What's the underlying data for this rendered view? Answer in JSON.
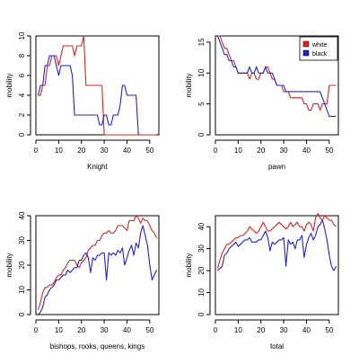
{
  "colors": {
    "white": "#dd2222",
    "black": "#2222cc",
    "axis": "#000000"
  },
  "chart_data": [
    {
      "type": "line",
      "xlabel": "Knight",
      "ylabel": "mobility",
      "xlim": [
        0,
        54
      ],
      "ylim": [
        0,
        10
      ],
      "xticks": [
        0,
        10,
        20,
        30,
        40,
        50
      ],
      "yticks": [
        0,
        2,
        4,
        6,
        8,
        10
      ],
      "series": [
        {
          "key": "white",
          "color": "#dd2222",
          "x": [
            1,
            2,
            3,
            4,
            5,
            6,
            7,
            8,
            9,
            10,
            11,
            12,
            13,
            14,
            15,
            16,
            17,
            18,
            19,
            20,
            21,
            22,
            23,
            24,
            25,
            26,
            27,
            28,
            29,
            30,
            31,
            32,
            33,
            34,
            35,
            36,
            37,
            38,
            39,
            40,
            41,
            42,
            43,
            44,
            45,
            46,
            47,
            48,
            49,
            50,
            51,
            52,
            53
          ],
          "y": [
            4,
            4,
            5,
            5,
            7,
            7,
            8,
            8,
            8,
            7,
            8,
            9,
            9,
            9,
            9,
            9,
            8,
            9,
            9,
            9,
            10,
            5,
            5,
            5,
            5,
            5,
            5,
            5,
            5,
            0,
            0,
            0,
            0,
            0,
            0,
            0,
            0,
            0,
            0,
            0,
            0,
            0,
            0,
            0,
            0,
            0,
            0,
            0,
            0,
            0,
            0,
            0,
            0
          ]
        },
        {
          "key": "black",
          "color": "#2222cc",
          "x": [
            1,
            2,
            3,
            4,
            5,
            6,
            7,
            8,
            9,
            10,
            11,
            12,
            13,
            14,
            15,
            16,
            17,
            18,
            19,
            20,
            21,
            22,
            23,
            24,
            25,
            26,
            27,
            28,
            29,
            30,
            31,
            32,
            33,
            34,
            35,
            36,
            37,
            38,
            39,
            40,
            41,
            42,
            43,
            44,
            45
          ],
          "y": [
            4,
            5,
            5,
            7,
            7,
            8,
            8,
            8,
            7,
            6,
            7,
            7,
            7,
            7,
            7,
            6,
            2,
            2,
            2,
            2,
            2,
            2,
            2,
            2,
            2,
            2,
            2,
            1,
            1,
            2,
            2,
            1,
            1,
            2,
            2,
            2,
            3,
            5,
            5,
            4,
            4,
            4,
            4,
            4,
            0
          ]
        }
      ]
    },
    {
      "type": "line",
      "xlabel": "pawn",
      "ylabel": "mobility",
      "xlim": [
        0,
        54
      ],
      "ylim": [
        0,
        16
      ],
      "xticks": [
        0,
        10,
        20,
        30,
        40,
        50
      ],
      "yticks": [
        0,
        5,
        10,
        15
      ],
      "legend": {
        "position": "top-right",
        "entries": [
          "white",
          "black"
        ]
      },
      "series": [
        {
          "key": "white",
          "color": "#dd2222",
          "x": [
            1,
            2,
            3,
            4,
            5,
            6,
            7,
            8,
            9,
            10,
            11,
            12,
            13,
            14,
            15,
            16,
            17,
            18,
            19,
            20,
            21,
            22,
            23,
            24,
            25,
            26,
            27,
            28,
            29,
            30,
            31,
            32,
            33,
            34,
            35,
            36,
            37,
            38,
            39,
            40,
            41,
            42,
            43,
            44,
            45,
            46,
            47,
            48,
            49,
            50,
            51,
            52,
            53
          ],
          "y": [
            16,
            16,
            15,
            14,
            14,
            13,
            12,
            12,
            11,
            10,
            10,
            10,
            10,
            10,
            9,
            10,
            10,
            9,
            9,
            10,
            10,
            11,
            11,
            10,
            9,
            9,
            8,
            8,
            8,
            7,
            7,
            7,
            6,
            6,
            6,
            6,
            6,
            6,
            5,
            5,
            4,
            4,
            5,
            5,
            5,
            4,
            5,
            5,
            5,
            8,
            8,
            8,
            8
          ]
        },
        {
          "key": "black",
          "color": "#2222cc",
          "x": [
            1,
            2,
            3,
            4,
            5,
            6,
            7,
            8,
            9,
            10,
            11,
            12,
            13,
            14,
            15,
            16,
            17,
            18,
            19,
            20,
            21,
            22,
            23,
            24,
            25,
            26,
            27,
            28,
            29,
            30,
            31,
            32,
            33,
            34,
            35,
            36,
            37,
            38,
            39,
            40,
            41,
            42,
            43,
            44,
            45,
            46,
            47,
            48,
            49,
            50,
            51,
            52,
            53
          ],
          "y": [
            16,
            15,
            14,
            13,
            13,
            12,
            12,
            11,
            11,
            10,
            10,
            10,
            10,
            10,
            11,
            10,
            10,
            11,
            10,
            10,
            10,
            11,
            10,
            10,
            10,
            9,
            8,
            8,
            8,
            8,
            7,
            7,
            7,
            7,
            7,
            7,
            7,
            7,
            7,
            7,
            7,
            7,
            7,
            7,
            7,
            7,
            6,
            5,
            4,
            3,
            3,
            3,
            3
          ]
        }
      ]
    },
    {
      "type": "line",
      "xlabel": "bishops, rooks, queens, kings",
      "ylabel": "mobility",
      "xlim": [
        0,
        54
      ],
      "ylim": [
        0,
        40
      ],
      "xticks": [
        0,
        10,
        20,
        30,
        40,
        50
      ],
      "yticks": [
        0,
        10,
        20,
        30,
        40
      ],
      "series": [
        {
          "key": "white",
          "color": "#dd2222",
          "x": [
            1,
            2,
            3,
            4,
            5,
            6,
            7,
            8,
            9,
            10,
            11,
            12,
            13,
            14,
            15,
            16,
            17,
            18,
            19,
            20,
            21,
            22,
            23,
            24,
            25,
            26,
            27,
            28,
            29,
            30,
            31,
            32,
            33,
            34,
            35,
            36,
            37,
            38,
            39,
            40,
            41,
            42,
            43,
            44,
            45,
            46,
            47,
            48,
            49,
            50,
            51,
            52,
            53
          ],
          "y": [
            2,
            5,
            9,
            11,
            11,
            12,
            12,
            13,
            15,
            16,
            16,
            18,
            19,
            21,
            22,
            22,
            22,
            20,
            19,
            21,
            22,
            23,
            26,
            27,
            28,
            28,
            30,
            30,
            32,
            33,
            33,
            34,
            33,
            33,
            34,
            36,
            36,
            36,
            35,
            34,
            38,
            38,
            38,
            40,
            39,
            37,
            39,
            38,
            38,
            36,
            34,
            33,
            31
          ]
        },
        {
          "key": "black",
          "color": "#2222cc",
          "x": [
            1,
            2,
            3,
            4,
            5,
            6,
            7,
            8,
            9,
            10,
            11,
            12,
            13,
            14,
            15,
            16,
            17,
            18,
            19,
            20,
            21,
            22,
            23,
            24,
            25,
            26,
            27,
            28,
            29,
            30,
            31,
            32,
            33,
            34,
            35,
            36,
            37,
            38,
            39,
            40,
            41,
            42,
            43,
            44,
            45,
            46,
            47,
            48,
            49,
            50,
            51,
            52,
            53
          ],
          "y": [
            0,
            1,
            3,
            7,
            8,
            10,
            11,
            12,
            14,
            14,
            15,
            16,
            16,
            18,
            17,
            18,
            19,
            19,
            22,
            22,
            24,
            25,
            23,
            17,
            23,
            22,
            24,
            24,
            25,
            25,
            14,
            25,
            24,
            25,
            24,
            26,
            25,
            27,
            20,
            23,
            26,
            28,
            24,
            29,
            27,
            33,
            36,
            32,
            28,
            20,
            14,
            16,
            18
          ]
        }
      ]
    },
    {
      "type": "line",
      "xlabel": "total",
      "ylabel": "mobility",
      "xlim": [
        0,
        54
      ],
      "ylim": [
        0,
        45
      ],
      "xticks": [
        0,
        10,
        20,
        30,
        40,
        50
      ],
      "yticks": [
        0,
        10,
        20,
        30,
        40
      ],
      "series": [
        {
          "key": "white",
          "color": "#dd2222",
          "x": [
            1,
            2,
            3,
            4,
            5,
            6,
            7,
            8,
            9,
            10,
            11,
            12,
            13,
            14,
            15,
            16,
            17,
            18,
            19,
            20,
            21,
            22,
            23,
            24,
            25,
            26,
            27,
            28,
            29,
            30,
            31,
            32,
            33,
            34,
            35,
            36,
            37,
            38,
            39,
            40,
            41,
            42,
            43,
            44,
            45,
            46,
            47,
            48,
            49,
            50,
            51,
            52,
            53
          ],
          "y": [
            21,
            25,
            28,
            30,
            32,
            32,
            33,
            34,
            35,
            35,
            36,
            36,
            37,
            38,
            40,
            39,
            38,
            37,
            38,
            40,
            42,
            40,
            38,
            38,
            39,
            40,
            41,
            42,
            41,
            40,
            39,
            40,
            42,
            40,
            41,
            42,
            40,
            40,
            38,
            41,
            42,
            41,
            38,
            44,
            46,
            44,
            43,
            45,
            44,
            43,
            43,
            41,
            40
          ]
        },
        {
          "key": "black",
          "color": "#2222cc",
          "x": [
            1,
            2,
            3,
            4,
            5,
            6,
            7,
            8,
            9,
            10,
            11,
            12,
            13,
            14,
            15,
            16,
            17,
            18,
            19,
            20,
            21,
            22,
            23,
            24,
            25,
            26,
            27,
            28,
            29,
            30,
            31,
            32,
            33,
            34,
            35,
            36,
            37,
            38,
            39,
            40,
            41,
            42,
            43,
            44,
            45,
            46,
            47,
            48,
            49,
            50,
            51,
            52,
            53
          ],
          "y": [
            20,
            21,
            22,
            27,
            28,
            30,
            31,
            32,
            33,
            31,
            32,
            33,
            34,
            34,
            35,
            33,
            33,
            33,
            34,
            34,
            36,
            38,
            35,
            29,
            33,
            32,
            33,
            34,
            34,
            35,
            22,
            34,
            32,
            33,
            30,
            34,
            34,
            36,
            26,
            32,
            35,
            37,
            34,
            36,
            40,
            41,
            43,
            39,
            34,
            27,
            22,
            20,
            22
          ]
        }
      ]
    }
  ]
}
